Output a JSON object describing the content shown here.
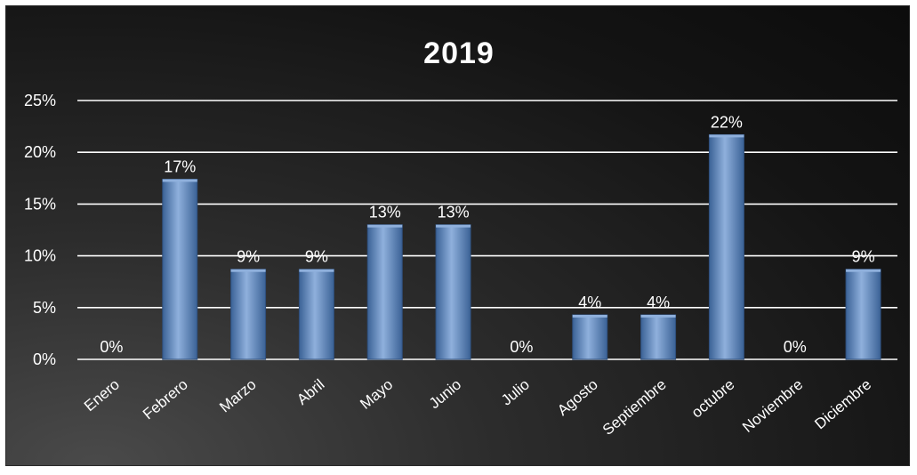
{
  "chart_data": {
    "type": "bar",
    "title": "2019",
    "xlabel": "",
    "ylabel": "",
    "categories": [
      "Enero",
      "Febrero",
      "Marzo",
      "Abril",
      "Mayo",
      "Junio",
      "Julio",
      "Agosto",
      "Septiembre",
      "octubre",
      "Noviembre",
      "Diciembre"
    ],
    "values": [
      0,
      17.4,
      8.7,
      8.7,
      13.0,
      13.0,
      0,
      4.3,
      4.3,
      21.7,
      0,
      8.7
    ],
    "data_labels": [
      "0%",
      "17%",
      "9%",
      "9%",
      "13%",
      "13%",
      "0%",
      "4%",
      "4%",
      "22%",
      "0%",
      "9%"
    ],
    "yticks": [
      "0%",
      "5%",
      "10%",
      "15%",
      "20%",
      "25%"
    ],
    "ylim": [
      0,
      25
    ],
    "grid": true,
    "legend": "none",
    "colors": {
      "bar": "#5b86c4",
      "bar_dark": "#3b6296",
      "bar_light": "#8fb0dc",
      "text": "#ffffff",
      "grid": "#ffffff"
    }
  }
}
